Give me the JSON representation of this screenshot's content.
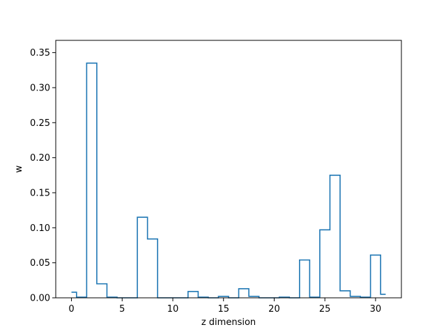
{
  "chart_data": {
    "type": "line",
    "title": "",
    "xlabel": "z dimension",
    "ylabel": "w",
    "xlim": [
      -1.55,
      32.55
    ],
    "ylim": [
      0,
      0.3675
    ],
    "xticks": [
      0,
      5,
      10,
      15,
      20,
      25,
      30
    ],
    "yticks": [
      0.0,
      0.05,
      0.1,
      0.15,
      0.2,
      0.25,
      0.3,
      0.35
    ],
    "ytick_labels": [
      "0.00",
      "0.05",
      "0.10",
      "0.15",
      "0.20",
      "0.25",
      "0.30",
      "0.35"
    ],
    "grid": false,
    "series": [
      {
        "color": "#1f77b4",
        "step": "mid",
        "x": [
          0,
          1,
          2,
          3,
          4,
          5,
          6,
          7,
          8,
          9,
          10,
          11,
          12,
          13,
          14,
          15,
          16,
          17,
          18,
          19,
          20,
          21,
          22,
          23,
          24,
          25,
          26,
          27,
          28,
          29,
          30,
          31
        ],
        "values": [
          0.008,
          0.001,
          0.335,
          0.02,
          0.001,
          0.0,
          0.0,
          0.115,
          0.084,
          0.0,
          0.0,
          0.0,
          0.009,
          0.001,
          0.0,
          0.002,
          0.0,
          0.013,
          0.002,
          0.0,
          0.0,
          0.001,
          0.0,
          0.054,
          0.001,
          0.097,
          0.175,
          0.01,
          0.002,
          0.001,
          0.061,
          0.005
        ]
      }
    ]
  }
}
